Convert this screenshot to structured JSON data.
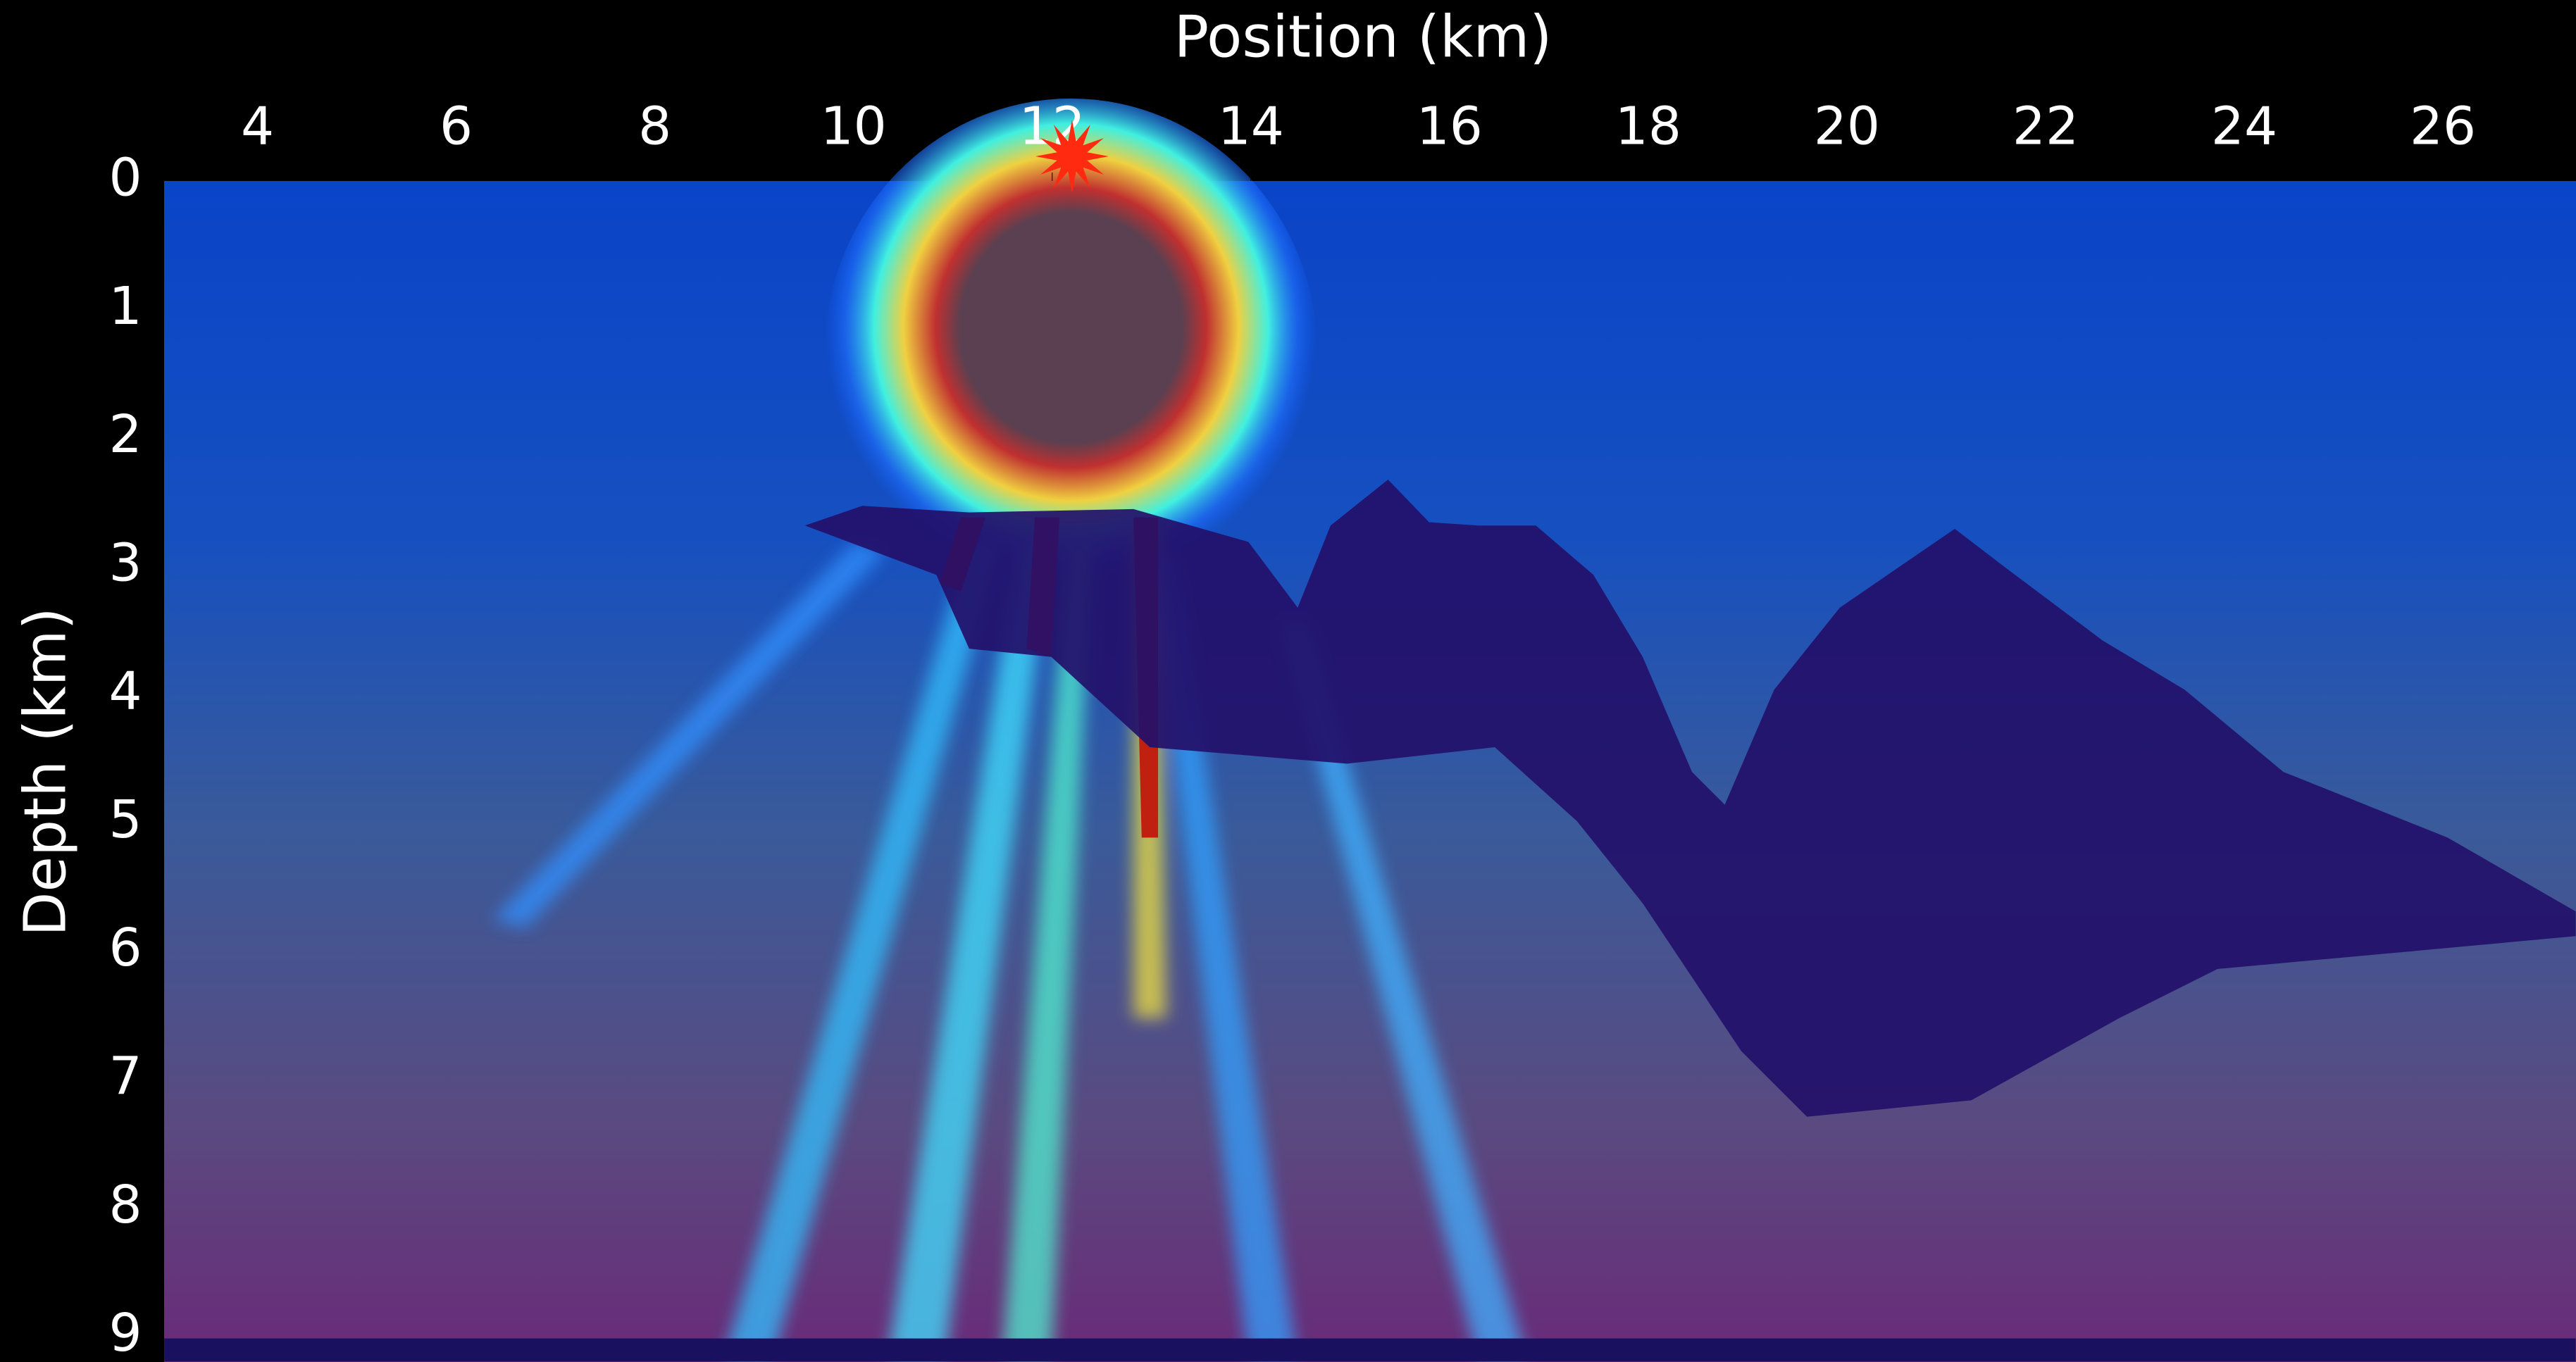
{
  "chart_data": {
    "type": "image",
    "title": "Position (km)",
    "y_label": "Depth (km)",
    "xlim": [
      3.06,
      27.34
    ],
    "ylim": [
      0,
      9.2
    ],
    "y_inverted": true,
    "xticks": [
      4,
      6,
      8,
      10,
      12,
      14,
      16,
      18,
      20,
      22,
      24,
      26
    ],
    "yticks": [
      0,
      1,
      2,
      3,
      4,
      5,
      6,
      7,
      8,
      9
    ],
    "x_axis_position": "top",
    "source": {
      "x": 12.2,
      "y": 0,
      "color": "#ff2a10"
    }
  }
}
